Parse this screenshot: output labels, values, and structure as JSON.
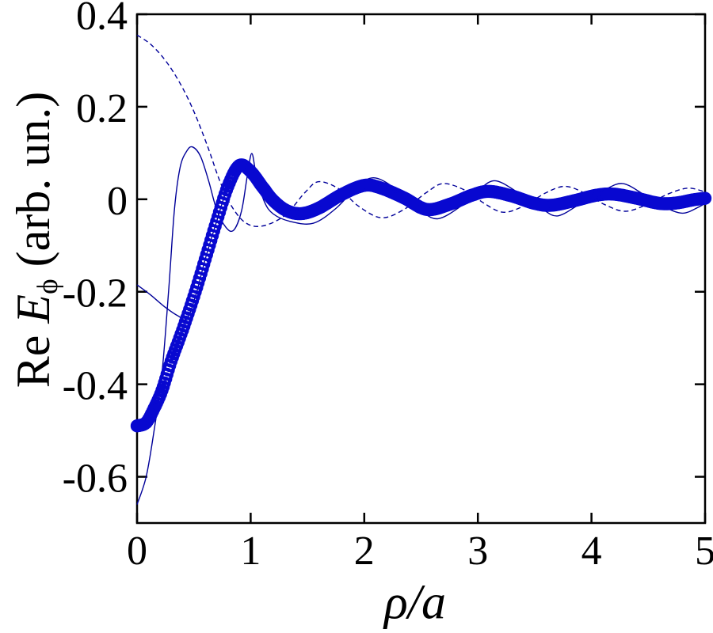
{
  "figure_title": "",
  "labels": {
    "x": {
      "rho": "ρ",
      "slash": "/",
      "a": "a"
    },
    "y": {
      "pre": "Re ",
      "symbol": "E",
      "subscript": "ϕ",
      "post": " (arb. un.)"
    }
  },
  "chart_data": {
    "type": "line",
    "title": "",
    "xlabel": "ρ/a",
    "ylabel": "Re E_ϕ (arb. un.)",
    "xlim": [
      0,
      5
    ],
    "ylim": [
      -0.7,
      0.4
    ],
    "grid": false,
    "legend": "none",
    "xticks": {
      "values": [
        0,
        1,
        2,
        3,
        4,
        5
      ],
      "labels": [
        "0",
        "1",
        "2",
        "3",
        "4",
        "5"
      ]
    },
    "yticks": {
      "values": [
        0.4,
        0.2,
        0,
        -0.2,
        -0.4,
        -0.6
      ],
      "labels": [
        "0.4",
        "0.2",
        "0",
        "-0.2",
        "-0.4",
        "-0.6"
      ]
    },
    "colors": {
      "marker_blue": "#0808d0",
      "line_blue": "#000099",
      "axis": "#000000"
    },
    "marker": {
      "shape": "open-circle",
      "spacing_rho": 0.012,
      "radius_px": 6.5,
      "stroke_px": 3.4
    },
    "series": [
      {
        "name": "total-field-thick-markers",
        "style": "thick-circle-markers",
        "x": [
          0,
          0.08,
          0.15,
          0.22,
          0.3,
          0.4,
          0.5,
          0.6,
          0.7,
          0.8,
          0.9,
          1.0,
          1.1,
          1.2,
          1.32,
          1.45,
          1.6,
          1.8,
          2.0,
          2.15,
          2.35,
          2.55,
          2.75,
          2.95,
          3.1,
          3.3,
          3.5,
          3.65,
          3.85,
          4.05,
          4.2,
          4.4,
          4.6,
          4.75,
          4.9,
          5.0
        ],
        "y": [
          -0.49,
          -0.483,
          -0.452,
          -0.413,
          -0.35,
          -0.283,
          -0.21,
          -0.13,
          -0.048,
          0.028,
          0.073,
          0.06,
          0.028,
          -0.003,
          -0.025,
          -0.031,
          -0.019,
          0.01,
          0.03,
          0.024,
          0.003,
          -0.022,
          -0.011,
          0.009,
          0.017,
          0.007,
          -0.009,
          -0.013,
          -0.003,
          0.009,
          0.011,
          0.002,
          -0.009,
          -0.008,
          -0.001,
          0.002
        ]
      },
      {
        "name": "component-overlay-thin-solid",
        "style": "thin-solid",
        "x": [
          0,
          0.12,
          0.24,
          0.36,
          0.44,
          0.52,
          0.6,
          0.7,
          0.8,
          0.9,
          1.0,
          1.1,
          1.2,
          1.32,
          1.45,
          1.6,
          1.8,
          2.0,
          2.15,
          2.35,
          2.55,
          2.75,
          2.95,
          3.1,
          3.3,
          3.5,
          3.65,
          3.85,
          4.05,
          4.2,
          4.4,
          4.6,
          4.75,
          4.9,
          5.0
        ],
        "y": [
          -0.185,
          -0.207,
          -0.232,
          -0.252,
          -0.258,
          -0.205,
          -0.13,
          -0.048,
          0.028,
          0.073,
          0.06,
          0.028,
          -0.003,
          -0.025,
          -0.031,
          -0.019,
          0.01,
          0.03,
          0.024,
          0.003,
          -0.022,
          -0.011,
          0.009,
          0.017,
          0.007,
          -0.009,
          -0.013,
          -0.003,
          0.009,
          0.011,
          0.002,
          -0.009,
          -0.008,
          -0.001,
          0.002
        ]
      },
      {
        "name": "component-oscillatory-thin-solid",
        "style": "thin-solid",
        "x": [
          0,
          0.08,
          0.15,
          0.22,
          0.28,
          0.33,
          0.38,
          0.44,
          0.49,
          0.56,
          0.63,
          0.7,
          0.78,
          0.85,
          0.92,
          0.97,
          1.01,
          1.05,
          1.12,
          1.2,
          1.35,
          1.55,
          1.75,
          1.95,
          2.1,
          2.3,
          2.5,
          2.65,
          2.85,
          3.0,
          3.15,
          3.35,
          3.55,
          3.7,
          3.9,
          4.1,
          4.27,
          4.45,
          4.62,
          4.8,
          4.95,
          5.0
        ],
        "y": [
          -0.66,
          -0.6,
          -0.5,
          -0.375,
          -0.19,
          -0.02,
          0.07,
          0.105,
          0.113,
          0.092,
          0.04,
          -0.022,
          -0.06,
          -0.067,
          -0.025,
          0.05,
          0.099,
          0.052,
          -0.005,
          -0.032,
          -0.048,
          -0.052,
          -0.02,
          0.03,
          0.046,
          0.018,
          -0.025,
          -0.042,
          -0.015,
          0.018,
          0.04,
          0.015,
          -0.018,
          -0.036,
          -0.01,
          0.018,
          0.034,
          0.012,
          -0.014,
          -0.03,
          -0.016,
          -0.008
        ]
      },
      {
        "name": "component-thin-dashed",
        "style": "thin-dashed",
        "x": [
          0,
          0.12,
          0.25,
          0.38,
          0.5,
          0.62,
          0.72,
          0.82,
          0.95,
          1.1,
          1.3,
          1.48,
          1.6,
          1.78,
          1.95,
          2.15,
          2.35,
          2.55,
          2.7,
          2.9,
          3.05,
          3.22,
          3.4,
          3.6,
          3.77,
          3.95,
          4.12,
          4.3,
          4.5,
          4.68,
          4.85,
          5.0
        ],
        "y": [
          0.355,
          0.335,
          0.3,
          0.25,
          0.19,
          0.115,
          0.045,
          -0.01,
          -0.05,
          -0.058,
          -0.035,
          0.015,
          0.038,
          0.022,
          -0.015,
          -0.04,
          -0.022,
          0.015,
          0.034,
          0.018,
          -0.008,
          -0.028,
          -0.015,
          0.014,
          0.028,
          0.012,
          -0.012,
          -0.026,
          -0.01,
          0.012,
          0.024,
          0.016
        ]
      }
    ]
  }
}
